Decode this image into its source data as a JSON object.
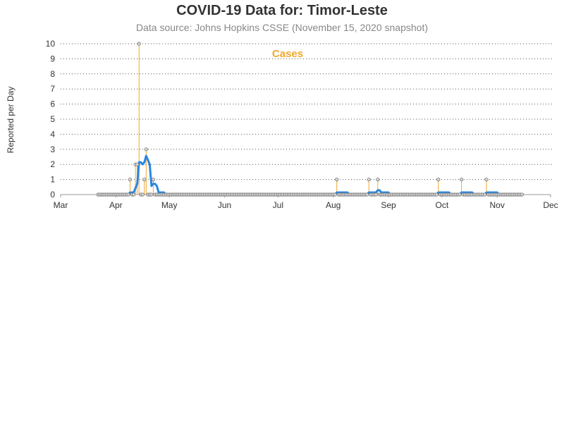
{
  "header": {
    "title": "COVID-19 Data for: Timor-Leste",
    "subtitle": "Data source: Johns Hopkins CSSE (November 15, 2020 snapshot)"
  },
  "chart_data": {
    "type": "line",
    "ylabel": "Reported per Day",
    "series_label": "Cases",
    "colors": {
      "cases": "#f0a830",
      "average": "#2a87e0",
      "marker_fill": "#d8d8d8",
      "marker_stroke": "#777777",
      "grid": "#555555",
      "axis": "#999999"
    },
    "grid": "horizontal-dotted",
    "ylim": [
      0,
      10
    ],
    "yticks": [
      0,
      1,
      2,
      3,
      4,
      5,
      6,
      7,
      8,
      9,
      10
    ],
    "xlim": [
      "2020-03-01",
      "2020-12-01"
    ],
    "xticks": [
      {
        "date": "2020-03-01",
        "label": "Mar"
      },
      {
        "date": "2020-04-01",
        "label": "Apr"
      },
      {
        "date": "2020-05-01",
        "label": "May"
      },
      {
        "date": "2020-06-01",
        "label": "Jun"
      },
      {
        "date": "2020-07-01",
        "label": "Jul"
      },
      {
        "date": "2020-08-01",
        "label": "Aug"
      },
      {
        "date": "2020-09-01",
        "label": "Sep"
      },
      {
        "date": "2020-10-01",
        "label": "Oct"
      },
      {
        "date": "2020-11-01",
        "label": "Nov"
      },
      {
        "date": "2020-12-01",
        "label": "Dec"
      }
    ],
    "range": [
      "2020-03-22",
      "2020-11-15"
    ],
    "daily_nonzero": [
      {
        "date": "2020-04-09",
        "value": 1
      },
      {
        "date": "2020-04-12",
        "value": 2
      },
      {
        "date": "2020-04-13",
        "value": 2
      },
      {
        "date": "2020-04-14",
        "value": 10
      },
      {
        "date": "2020-04-17",
        "value": 1
      },
      {
        "date": "2020-04-18",
        "value": 3
      },
      {
        "date": "2020-04-22",
        "value": 1
      },
      {
        "date": "2020-08-03",
        "value": 1
      },
      {
        "date": "2020-08-21",
        "value": 1
      },
      {
        "date": "2020-08-26",
        "value": 1
      },
      {
        "date": "2020-09-29",
        "value": 1
      },
      {
        "date": "2020-10-12",
        "value": 1
      },
      {
        "date": "2020-10-26",
        "value": 1
      }
    ]
  }
}
